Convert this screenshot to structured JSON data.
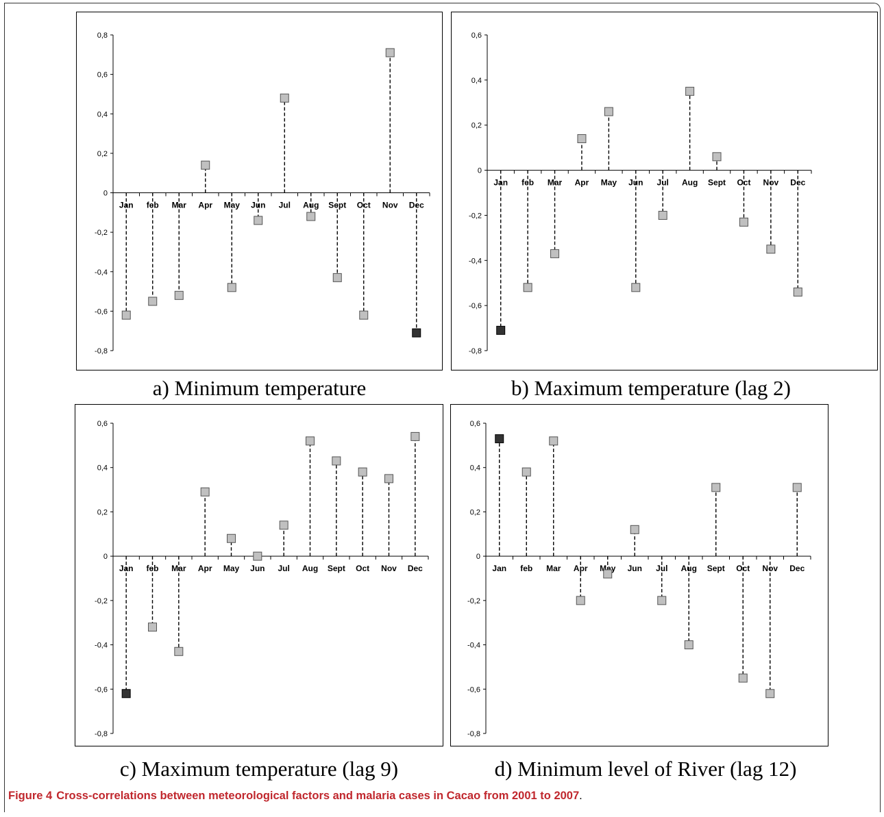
{
  "figure": {
    "label": "Figure 4",
    "caption": "Cross-correlations between meteorological factors and malaria cases in Cacao from 2001 to 2007",
    "caption_end": "."
  },
  "colors": {
    "marker": "#c0c0c0",
    "highlight": "#333333",
    "caption": "#c0272d"
  },
  "chart_data": [
    {
      "type": "scatter",
      "subtitle": "a) Minimum temperature",
      "categories": [
        "Jan",
        "feb",
        "Mar",
        "Apr",
        "May",
        "Jun",
        "Jul",
        "Aug",
        "Sept",
        "Oct",
        "Nov",
        "Dec"
      ],
      "values": [
        -0.62,
        -0.55,
        -0.52,
        0.14,
        -0.48,
        -0.14,
        0.48,
        -0.12,
        -0.43,
        -0.62,
        0.71,
        -0.71
      ],
      "highlight_index": 11,
      "yticks": [
        "0,8",
        "0,6",
        "0,4",
        "0,2",
        "0",
        "-0,2",
        "-0,4",
        "-0,6",
        "-0,8"
      ],
      "ylim": [
        -0.8,
        0.8
      ],
      "grid": false,
      "style": "stem, dashed lines, square markers"
    },
    {
      "type": "scatter",
      "subtitle": "b) Maximum temperature (lag 2)",
      "categories": [
        "Jan",
        "feb",
        "Mar",
        "Apr",
        "May",
        "Jun",
        "Jul",
        "Aug",
        "Sept",
        "Oct",
        "Nov",
        "Dec"
      ],
      "values": [
        -0.71,
        -0.52,
        -0.37,
        0.14,
        0.26,
        -0.52,
        -0.2,
        0.35,
        0.06,
        -0.23,
        -0.35,
        -0.54
      ],
      "highlight_index": 0,
      "yticks": [
        "0,6",
        "0,4",
        "0,2",
        "0",
        "-0,2",
        "-0,4",
        "-0,6",
        "-0,8"
      ],
      "ylim": [
        -0.8,
        0.6
      ],
      "grid": false,
      "style": "stem, dashed lines, square markers"
    },
    {
      "type": "scatter",
      "subtitle": "c) Maximum temperature (lag 9)",
      "categories": [
        "Jan",
        "feb",
        "Mar",
        "Apr",
        "May",
        "Jun",
        "Jul",
        "Aug",
        "Sept",
        "Oct",
        "Nov",
        "Dec"
      ],
      "values": [
        -0.62,
        -0.32,
        -0.43,
        0.29,
        0.08,
        0.0,
        0.14,
        0.52,
        0.43,
        0.38,
        0.35,
        0.54
      ],
      "highlight_index": 0,
      "yticks": [
        "0,6",
        "0,4",
        "0,2",
        "0",
        "-0,2",
        "-0,4",
        "-0,6",
        "-0,8"
      ],
      "ylim": [
        -0.8,
        0.6
      ],
      "grid": false,
      "style": "stem, dashed lines, square markers"
    },
    {
      "type": "scatter",
      "subtitle": "d) Minimum level of River (lag 12)",
      "categories": [
        "Jan",
        "feb",
        "Mar",
        "Apr",
        "May",
        "Jun",
        "Jul",
        "Aug",
        "Sept",
        "Oct",
        "Nov",
        "Dec"
      ],
      "values": [
        0.53,
        0.38,
        0.52,
        -0.2,
        -0.08,
        0.12,
        -0.2,
        -0.4,
        0.31,
        -0.55,
        -0.62,
        0.31
      ],
      "highlight_index": 0,
      "yticks": [
        "0,6",
        "0,4",
        "0,2",
        "0",
        "-0,2",
        "-0,4",
        "-0,6",
        "-0,8"
      ],
      "ylim": [
        -0.8,
        0.6
      ],
      "grid": false,
      "style": "stem, dashed lines, square markers"
    }
  ]
}
